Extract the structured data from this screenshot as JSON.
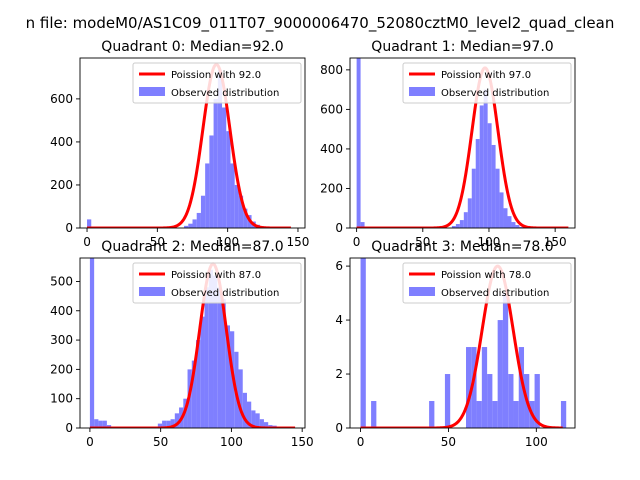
{
  "figure": {
    "suptitle": "n file: modeM0/AS1C09_011T07_9000006470_52080cztM0_level2_quad_clean"
  },
  "colors": {
    "hist": "#7f7fff",
    "curve": "#ff0000",
    "axes": "#000000",
    "legend_border": "#cccccc"
  },
  "chart_data": [
    {
      "type": "bar",
      "title": "Quadrant 0: Median=92.0",
      "xlim": [
        -5,
        155
      ],
      "ylim": [
        0,
        790
      ],
      "xticks": [
        0,
        50,
        100,
        150
      ],
      "yticks": [
        0,
        200,
        400,
        600
      ],
      "bin_width": 3,
      "bins": [
        [
          0,
          40
        ],
        [
          48,
          3
        ],
        [
          69,
          10
        ],
        [
          72,
          20
        ],
        [
          75,
          40
        ],
        [
          78,
          70
        ],
        [
          81,
          150
        ],
        [
          84,
          300
        ],
        [
          87,
          430
        ],
        [
          90,
          600
        ],
        [
          93,
          735
        ],
        [
          96,
          560
        ],
        [
          99,
          450
        ],
        [
          102,
          300
        ],
        [
          105,
          200
        ],
        [
          108,
          150
        ],
        [
          111,
          90
        ],
        [
          114,
          60
        ],
        [
          117,
          30
        ],
        [
          120,
          15
        ],
        [
          123,
          8
        ],
        [
          126,
          5
        ],
        [
          129,
          3
        ]
      ],
      "curve": {
        "lambda": 92.0,
        "peak": 760,
        "x_range": [
          0,
          145
        ]
      },
      "legend": {
        "curve_label": "Poission with 92.0",
        "hist_label": "Observed distribution"
      }
    },
    {
      "type": "bar",
      "title": "Quadrant 1: Median=97.0",
      "xlim": [
        -5,
        165
      ],
      "ylim": [
        0,
        860
      ],
      "xticks": [
        0,
        50,
        100,
        150
      ],
      "yticks": [
        0,
        200,
        400,
        600,
        800
      ],
      "bin_width": 3,
      "bins": [
        [
          0,
          860
        ],
        [
          3,
          30
        ],
        [
          6,
          5
        ],
        [
          60,
          3
        ],
        [
          72,
          10
        ],
        [
          75,
          20
        ],
        [
          78,
          40
        ],
        [
          81,
          80
        ],
        [
          84,
          150
        ],
        [
          87,
          300
        ],
        [
          90,
          450
        ],
        [
          93,
          620
        ],
        [
          96,
          700
        ],
        [
          99,
          530
        ],
        [
          102,
          420
        ],
        [
          105,
          300
        ],
        [
          108,
          180
        ],
        [
          111,
          100
        ],
        [
          114,
          60
        ],
        [
          117,
          30
        ],
        [
          120,
          15
        ],
        [
          123,
          5
        ],
        [
          126,
          3
        ]
      ],
      "curve": {
        "lambda": 97.0,
        "peak": 810,
        "x_range": [
          0,
          160
        ]
      },
      "legend": {
        "curve_label": "Poission with 97.0",
        "hist_label": "Observed distribution"
      }
    },
    {
      "type": "bar",
      "title": "Quadrant 2: Median=87.0",
      "xlim": [
        -7,
        152
      ],
      "ylim": [
        0,
        580
      ],
      "xticks": [
        0,
        50,
        100,
        150
      ],
      "yticks": [
        0,
        100,
        200,
        300,
        400,
        500
      ],
      "bin_width": 3,
      "bins": [
        [
          0,
          580
        ],
        [
          3,
          30
        ],
        [
          6,
          25
        ],
        [
          9,
          25
        ],
        [
          12,
          10
        ],
        [
          48,
          15
        ],
        [
          51,
          25
        ],
        [
          54,
          25
        ],
        [
          57,
          30
        ],
        [
          60,
          50
        ],
        [
          63,
          70
        ],
        [
          66,
          100
        ],
        [
          69,
          200
        ],
        [
          72,
          230
        ],
        [
          75,
          300
        ],
        [
          78,
          380
        ],
        [
          81,
          480
        ],
        [
          84,
          540
        ],
        [
          87,
          520
        ],
        [
          90,
          480
        ],
        [
          93,
          440
        ],
        [
          96,
          350
        ],
        [
          99,
          330
        ],
        [
          102,
          260
        ],
        [
          105,
          200
        ],
        [
          108,
          120
        ],
        [
          111,
          90
        ],
        [
          114,
          60
        ],
        [
          117,
          50
        ],
        [
          120,
          30
        ],
        [
          123,
          20
        ],
        [
          126,
          10
        ],
        [
          129,
          8
        ],
        [
          132,
          5
        ],
        [
          135,
          3
        ]
      ],
      "curve": {
        "lambda": 87.0,
        "peak": 560,
        "x_range": [
          0,
          145
        ]
      },
      "legend": {
        "curve_label": "Poission with 87.0",
        "hist_label": "Observed distribution"
      }
    },
    {
      "type": "bar",
      "title": "Quadrant 3: Median=78.0",
      "xlim": [
        -6,
        122
      ],
      "ylim": [
        0,
        6.3
      ],
      "xticks": [
        0,
        50,
        100
      ],
      "yticks": [
        0,
        2,
        4,
        6
      ],
      "bin_width": 3,
      "bins": [
        [
          0,
          6.3
        ],
        [
          6,
          1
        ],
        [
          39,
          1
        ],
        [
          48,
          2
        ],
        [
          60,
          3
        ],
        [
          63,
          3
        ],
        [
          66,
          1
        ],
        [
          69,
          3
        ],
        [
          72,
          2
        ],
        [
          75,
          1
        ],
        [
          78,
          4
        ],
        [
          81,
          5
        ],
        [
          84,
          2
        ],
        [
          87,
          1
        ],
        [
          90,
          3
        ],
        [
          93,
          2
        ],
        [
          96,
          1
        ],
        [
          99,
          2
        ],
        [
          114,
          1
        ]
      ],
      "curve": {
        "lambda": 78.0,
        "peak": 6.0,
        "x_range": [
          0,
          115
        ]
      },
      "legend": {
        "curve_label": "Poission with 78.0",
        "hist_label": "Observed distribution"
      }
    }
  ]
}
